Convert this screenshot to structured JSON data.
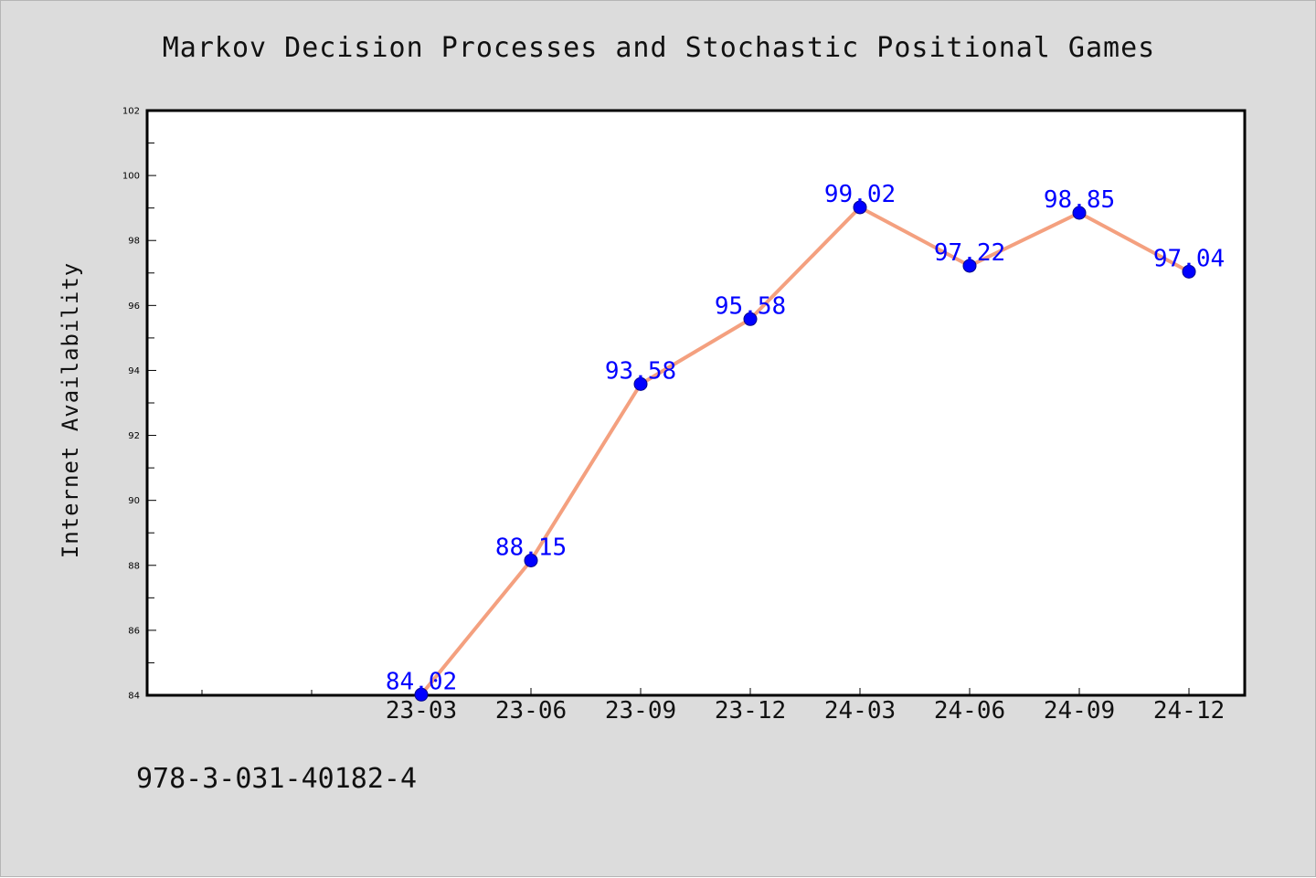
{
  "title": "Markov Decision Processes and Stochastic Positional Games",
  "footer_text": "978-3-031-40182-4",
  "chart_data": {
    "type": "line",
    "title": "Markov Decision Processes and Stochastic Positional Games",
    "xlabel": "",
    "ylabel": "Internet Availability",
    "categories": [
      "23-03",
      "23-06",
      "23-09",
      "23-12",
      "24-03",
      "24-06",
      "24-09",
      "24-12"
    ],
    "values": [
      84.02,
      88.15,
      93.58,
      95.58,
      99.02,
      97.22,
      98.85,
      97.04
    ],
    "data_labels": [
      "84.02",
      "88.15",
      "93.58",
      "95.58",
      "99.02",
      "97.22",
      "98.85",
      "97.04"
    ],
    "ylim": [
      84,
      102
    ],
    "yticks": [
      "84",
      "86",
      "88",
      "90",
      "92",
      "94",
      "96",
      "98",
      "100",
      "102"
    ],
    "grid": false,
    "legend": "none",
    "colors": {
      "line": "#f4a07f",
      "marker": "#0000ff",
      "label": "#0000ff",
      "plot_background": "#ffffff",
      "page_background": "#dcdcdc"
    }
  }
}
